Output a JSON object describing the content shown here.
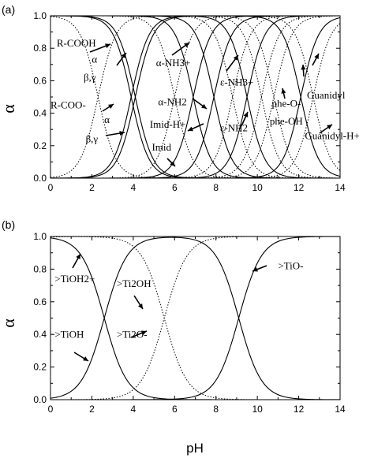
{
  "chart_data": [
    {
      "panel": "(a)",
      "type": "line",
      "xlabel": "",
      "ylabel": "α",
      "xlim": [
        0,
        14
      ],
      "ylim": [
        0,
        1.0
      ],
      "xticks": [
        "0",
        "2",
        "4",
        "6",
        "8",
        "10",
        "12",
        "14"
      ],
      "yticks": [
        "0.0",
        "0.2",
        "0.4",
        "0.6",
        "0.8",
        "1.0"
      ],
      "grid": false,
      "curves": [
        {
          "style": "solid",
          "kind": "fall",
          "mid": 3.9,
          "scale": 0.43
        },
        {
          "style": "solid",
          "kind": "rise",
          "mid": 3.9,
          "scale": 0.43
        },
        {
          "style": "solid",
          "kind": "fall",
          "mid": 4.1,
          "scale": 0.43
        },
        {
          "style": "solid",
          "kind": "rise",
          "mid": 4.1,
          "scale": 0.43
        },
        {
          "style": "solid",
          "kind": "fall",
          "mid": 6.9,
          "scale": 0.43
        },
        {
          "style": "solid",
          "kind": "rise",
          "mid": 6.9,
          "scale": 0.43
        },
        {
          "style": "solid",
          "kind": "fall",
          "mid": 7.9,
          "scale": 0.43
        },
        {
          "style": "solid",
          "kind": "rise",
          "mid": 7.9,
          "scale": 0.43
        },
        {
          "style": "solid",
          "kind": "fall",
          "mid": 9.5,
          "scale": 0.43
        },
        {
          "style": "solid",
          "kind": "rise",
          "mid": 9.5,
          "scale": 0.43
        },
        {
          "style": "solid",
          "kind": "fall",
          "mid": 12.1,
          "scale": 0.43
        },
        {
          "style": "solid",
          "kind": "rise",
          "mid": 12.1,
          "scale": 0.43
        },
        {
          "style": "dotted",
          "kind": "fall",
          "mid": 2.3,
          "scale": 0.43
        },
        {
          "style": "dotted",
          "kind": "rise",
          "mid": 2.3,
          "scale": 0.43
        },
        {
          "style": "dotted",
          "kind": "fall",
          "mid": 6.0,
          "scale": 0.43
        },
        {
          "style": "dotted",
          "kind": "rise",
          "mid": 6.0,
          "scale": 0.43
        },
        {
          "style": "dotted",
          "kind": "fall",
          "mid": 8.8,
          "scale": 0.43
        },
        {
          "style": "dotted",
          "kind": "rise",
          "mid": 8.8,
          "scale": 0.43
        },
        {
          "style": "dotted",
          "kind": "fall",
          "mid": 10.2,
          "scale": 0.43
        },
        {
          "style": "dotted",
          "kind": "rise",
          "mid": 10.2,
          "scale": 0.43
        },
        {
          "style": "dotted",
          "kind": "fall",
          "mid": 10.8,
          "scale": 0.43
        },
        {
          "style": "dotted",
          "kind": "rise",
          "mid": 10.8,
          "scale": 0.43
        },
        {
          "style": "dotted",
          "kind": "fall",
          "mid": 12.7,
          "scale": 0.43
        },
        {
          "style": "dotted",
          "kind": "rise",
          "mid": 12.7,
          "scale": 0.43
        }
      ],
      "annotations": [
        {
          "text": "R-COOH",
          "x": 0.3,
          "y": 0.81
        },
        {
          "text": "α",
          "x": 2.0,
          "y": 0.71
        },
        {
          "text": "β,γ",
          "x": 1.6,
          "y": 0.6
        },
        {
          "text": "α-NH3+",
          "x": 5.1,
          "y": 0.69
        },
        {
          "text": "ε-NH3+",
          "x": 8.2,
          "y": 0.57
        },
        {
          "text": "phe-O-",
          "x": 10.7,
          "y": 0.44
        },
        {
          "text": "Guanidyl",
          "x": 12.4,
          "y": 0.49
        },
        {
          "text": "R-COO-",
          "x": 0.0,
          "y": 0.43
        },
        {
          "text": "α-NH2",
          "x": 5.2,
          "y": 0.45
        },
        {
          "text": "phe-OH",
          "x": 10.6,
          "y": 0.33
        },
        {
          "text": "α",
          "x": 2.6,
          "y": 0.34
        },
        {
          "text": "ε-NH2",
          "x": 8.2,
          "y": 0.29
        },
        {
          "text": "Imid-H+",
          "x": 4.8,
          "y": 0.31
        },
        {
          "text": "β,γ",
          "x": 1.7,
          "y": 0.22
        },
        {
          "text": "Guanidyl-H+",
          "x": 12.3,
          "y": 0.24
        },
        {
          "text": "Imid",
          "x": 4.9,
          "y": 0.17
        }
      ]
    },
    {
      "panel": "(b)",
      "type": "line",
      "xlabel": "pH",
      "ylabel": "α",
      "xlim": [
        0,
        14
      ],
      "ylim": [
        0,
        1.0
      ],
      "xticks": [
        "0",
        "2",
        "4",
        "6",
        "8",
        "10",
        "12",
        "14"
      ],
      "yticks": [
        "0.0",
        "0.2",
        "0.4",
        "0.6",
        "0.8",
        "1.0"
      ],
      "grid": false,
      "curves": [
        {
          "style": "solid",
          "kind": "fall",
          "mid": 2.6,
          "scale": 0.55
        },
        {
          "style": "solid",
          "kind": "bell",
          "mid": 2.6,
          "mid2": 9.1,
          "scale": 0.55
        },
        {
          "style": "solid",
          "kind": "rise",
          "mid": 9.1,
          "scale": 0.55
        },
        {
          "style": "dotted",
          "kind": "bell",
          "mid": -3.0,
          "mid2": 5.5,
          "scale": 0.55
        },
        {
          "style": "dotted",
          "kind": "rise",
          "mid": 5.5,
          "scale": 0.55
        }
      ],
      "annotations": [
        {
          "text": ">TiOH2+",
          "x": 0.2,
          "y": 0.72
        },
        {
          "text": ">Ti2OH",
          "x": 3.2,
          "y": 0.69
        },
        {
          "text": ">TiO-",
          "x": 11.0,
          "y": 0.8
        },
        {
          "text": ">TiOH",
          "x": 0.2,
          "y": 0.38
        },
        {
          "text": ">Ti2O-",
          "x": 3.2,
          "y": 0.38
        }
      ]
    }
  ],
  "labels": {
    "panel_a": "(a)",
    "panel_b": "(b)",
    "ylabel_a": "α",
    "ylabel_b": "α",
    "xlabel_a": "",
    "xlabel_b": "pH"
  }
}
